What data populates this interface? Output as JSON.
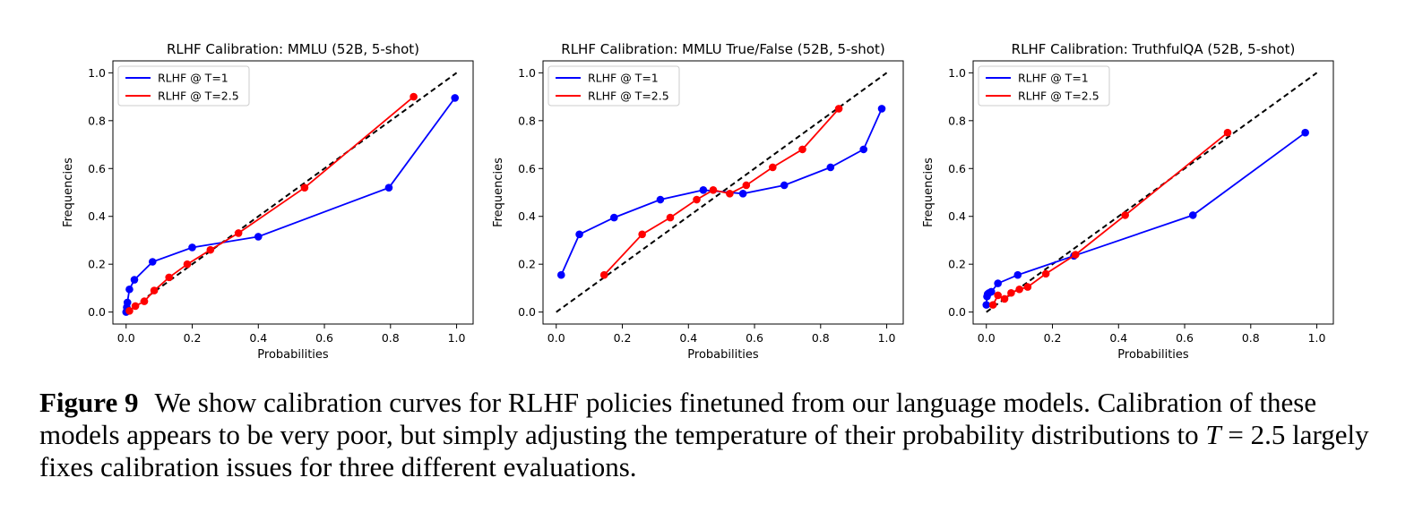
{
  "chart_data": [
    {
      "type": "line",
      "title": "RLHF  Calibration: MMLU (52B, 5-shot)",
      "xlabel": "Probabilities",
      "ylabel": "Frequencies",
      "xlim": [
        -0.04,
        1.05
      ],
      "ylim": [
        -0.05,
        1.05
      ],
      "xticks": [
        "0.0",
        "0.2",
        "0.4",
        "0.6",
        "0.8",
        "1.0"
      ],
      "yticks": [
        "0.0",
        "0.2",
        "0.4",
        "0.6",
        "0.8",
        "1.0"
      ],
      "legend_position": "top-left",
      "diagonal": true,
      "series": [
        {
          "name": "RLHF @ T=1",
          "color": "#0000ff",
          "x": [
            0.0,
            0.002,
            0.004,
            0.01,
            0.025,
            0.08,
            0.2,
            0.4,
            0.795,
            0.995
          ],
          "y": [
            0.0,
            0.02,
            0.04,
            0.095,
            0.135,
            0.21,
            0.27,
            0.315,
            0.52,
            0.895
          ]
        },
        {
          "name": "RLHF @ T=2.5",
          "color": "#ff0000",
          "x": [
            0.01,
            0.028,
            0.055,
            0.085,
            0.13,
            0.185,
            0.255,
            0.34,
            0.54,
            0.87
          ],
          "y": [
            0.005,
            0.025,
            0.045,
            0.09,
            0.145,
            0.2,
            0.26,
            0.33,
            0.52,
            0.9
          ]
        }
      ]
    },
    {
      "type": "line",
      "title": "RLHF  Calibration: MMLU True/False (52B, 5-shot)",
      "xlabel": "Probabilities",
      "ylabel": "Frequencies",
      "xlim": [
        -0.04,
        1.05
      ],
      "ylim": [
        -0.05,
        1.05
      ],
      "xticks": [
        "0.0",
        "0.2",
        "0.4",
        "0.6",
        "0.8",
        "1.0"
      ],
      "yticks": [
        "0.0",
        "0.2",
        "0.4",
        "0.6",
        "0.8",
        "1.0"
      ],
      "legend_position": "top-left",
      "diagonal": true,
      "series": [
        {
          "name": "RLHF @ T=1",
          "color": "#0000ff",
          "x": [
            0.015,
            0.07,
            0.175,
            0.315,
            0.445,
            0.565,
            0.69,
            0.83,
            0.93,
            0.985
          ],
          "y": [
            0.155,
            0.325,
            0.395,
            0.47,
            0.51,
            0.495,
            0.53,
            0.605,
            0.68,
            0.85
          ]
        },
        {
          "name": "RLHF @ T=2.5",
          "color": "#ff0000",
          "x": [
            0.145,
            0.26,
            0.345,
            0.425,
            0.475,
            0.525,
            0.575,
            0.655,
            0.745,
            0.855
          ],
          "y": [
            0.155,
            0.325,
            0.395,
            0.47,
            0.51,
            0.495,
            0.53,
            0.605,
            0.68,
            0.85
          ]
        }
      ]
    },
    {
      "type": "line",
      "title": "RLHF  Calibration: TruthfulQA (52B, 5-shot)",
      "xlabel": "Probabilities",
      "ylabel": "Frequencies",
      "xlim": [
        -0.04,
        1.05
      ],
      "ylim": [
        -0.05,
        1.05
      ],
      "xticks": [
        "0.0",
        "0.2",
        "0.4",
        "0.6",
        "0.8",
        "1.0"
      ],
      "yticks": [
        "0.0",
        "0.2",
        "0.4",
        "0.6",
        "0.8",
        "1.0"
      ],
      "legend_position": "top-left",
      "diagonal": true,
      "series": [
        {
          "name": "RLHF @ T=1",
          "color": "#0000ff",
          "x": [
            0.0,
            0.002,
            0.004,
            0.008,
            0.015,
            0.035,
            0.095,
            0.265,
            0.625,
            0.965
          ],
          "y": [
            0.03,
            0.065,
            0.075,
            0.08,
            0.085,
            0.12,
            0.155,
            0.235,
            0.405,
            0.75
          ]
        },
        {
          "name": "RLHF @ T=2.5",
          "color": "#ff0000",
          "x": [
            0.02,
            0.035,
            0.055,
            0.075,
            0.1,
            0.125,
            0.18,
            0.27,
            0.42,
            0.73
          ],
          "y": [
            0.03,
            0.07,
            0.055,
            0.08,
            0.095,
            0.105,
            0.16,
            0.24,
            0.405,
            0.75
          ]
        }
      ]
    }
  ],
  "caption": {
    "label": "Figure 9",
    "text_1": "We show calibration curves for RLHF policies finetuned from our language models. Calibration of these models appears to be very poor, but simply adjusting the temperature of their probability distributions to ",
    "math_var": "T",
    "math_rest": " = 2.5",
    "text_2": " largely fixes calibration issues for three different evaluations."
  }
}
